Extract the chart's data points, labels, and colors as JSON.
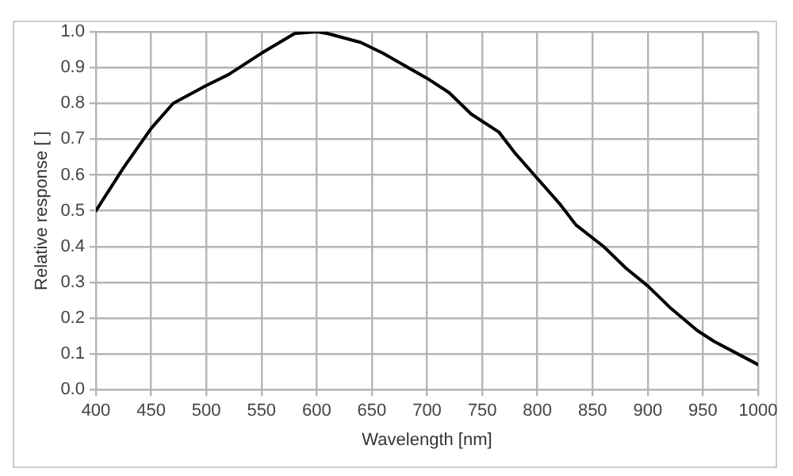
{
  "chart_data": {
    "type": "line",
    "xlabel": "Wavelength [nm]",
    "ylabel": "Relative response [ ]",
    "series": [
      {
        "color": "#000000",
        "x": [
          400,
          425,
          450,
          470,
          500,
          520,
          550,
          580,
          600,
          610,
          640,
          660,
          700,
          720,
          740,
          765,
          780,
          800,
          820,
          835,
          860,
          880,
          900,
          920,
          945,
          960,
          1000
        ],
        "values": [
          0.5,
          0.62,
          0.73,
          0.8,
          0.85,
          0.88,
          0.94,
          0.995,
          1.0,
          0.995,
          0.97,
          0.94,
          0.87,
          0.83,
          0.77,
          0.72,
          0.66,
          0.59,
          0.52,
          0.46,
          0.4,
          0.34,
          0.29,
          0.23,
          0.165,
          0.135,
          0.07
        ]
      }
    ],
    "xlim": [
      400,
      1000
    ],
    "xticks": [
      400,
      450,
      500,
      550,
      600,
      650,
      700,
      750,
      800,
      850,
      900,
      950,
      1000
    ],
    "ylim": [
      0,
      1
    ],
    "yticks": [
      {
        "value": 0,
        "label": "0.0"
      },
      0.1,
      0.2,
      0.3,
      0.4,
      0.5,
      0.6,
      0.7,
      0.8,
      0.9,
      {
        "value": 1,
        "label": "1.0"
      }
    ],
    "grid": true,
    "legend": false,
    "marker": "none",
    "line_style": "solid"
  }
}
